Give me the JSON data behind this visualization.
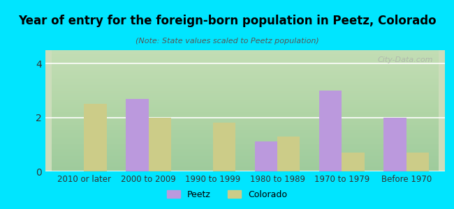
{
  "title": "Year of entry for the foreign-born population in Peetz, Colorado",
  "subtitle": "(Note: State values scaled to Peetz population)",
  "categories": [
    "2010 or later",
    "2000 to 2009",
    "1990 to 1999",
    "1980 to 1989",
    "1970 to 1979",
    "Before 1970"
  ],
  "peetz_values": [
    0,
    2.7,
    0,
    1.1,
    3.0,
    2.0
  ],
  "colorado_values": [
    2.5,
    2.0,
    1.8,
    1.3,
    0.7,
    0.7
  ],
  "peetz_color": "#bb99dd",
  "colorado_color": "#cccc88",
  "background_outer": "#00e5ff",
  "background_inner_top": "#ffffff",
  "background_inner_bottom": "#ccddbb",
  "ylim": [
    0,
    4.5
  ],
  "yticks": [
    0,
    2,
    4
  ],
  "bar_width": 0.35,
  "legend_labels": [
    "Peetz",
    "Colorado"
  ],
  "watermark": "City-Data.com"
}
